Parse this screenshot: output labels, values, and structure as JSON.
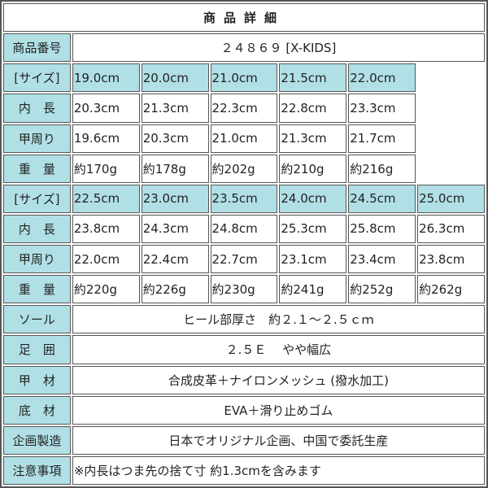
{
  "title": "商品詳細",
  "product_number": {
    "label": "商品番号",
    "value": "２４８６９ [X-KIDS]"
  },
  "size_groups": [
    {
      "sizes": [
        "19.0cm",
        "20.0cm",
        "21.0cm",
        "21.5cm",
        "22.0cm"
      ],
      "inner_length": [
        "20.3cm",
        "21.3cm",
        "22.3cm",
        "22.8cm",
        "23.3cm"
      ],
      "instep": [
        "19.6cm",
        "20.3cm",
        "21.0cm",
        "21.3cm",
        "21.7cm"
      ],
      "weight": [
        "約170g",
        "約178g",
        "約202g",
        "約210g",
        "約216g"
      ]
    },
    {
      "sizes": [
        "22.5cm",
        "23.0cm",
        "23.5cm",
        "24.0cm",
        "24.5cm",
        "25.0cm"
      ],
      "inner_length": [
        "23.8cm",
        "24.3cm",
        "24.8cm",
        "25.3cm",
        "25.8cm",
        "26.3cm"
      ],
      "instep": [
        "22.0cm",
        "22.4cm",
        "22.7cm",
        "23.1cm",
        "23.4cm",
        "23.8cm"
      ],
      "weight": [
        "約220g",
        "約226g",
        "約230g",
        "約241g",
        "約252g",
        "約262g"
      ]
    }
  ],
  "row_labels": {
    "size": "[サイズ]",
    "inner_length": "内　長",
    "instep": "甲周り",
    "weight": "重　量"
  },
  "details": [
    {
      "label": "ソール",
      "value": "ヒール部厚さ　約２.１～２.５ｃｍ"
    },
    {
      "label": "足　囲",
      "value": "２.５Ｅ　 やや幅広"
    },
    {
      "label": "甲　材",
      "value": "合成皮革＋ナイロンメッシュ (撥水加工)"
    },
    {
      "label": "底　材",
      "value": "EVA＋滑り止めゴム"
    },
    {
      "label": "企画製造",
      "value": "日本でオリジナル企画、中国で委託生産"
    },
    {
      "label": "注意事項",
      "value": "※内長はつま先の捨て寸 約1.3cmを含みます",
      "align": "left"
    }
  ],
  "colors": {
    "label_bg": "#b0e0e6",
    "border": "#555555"
  }
}
